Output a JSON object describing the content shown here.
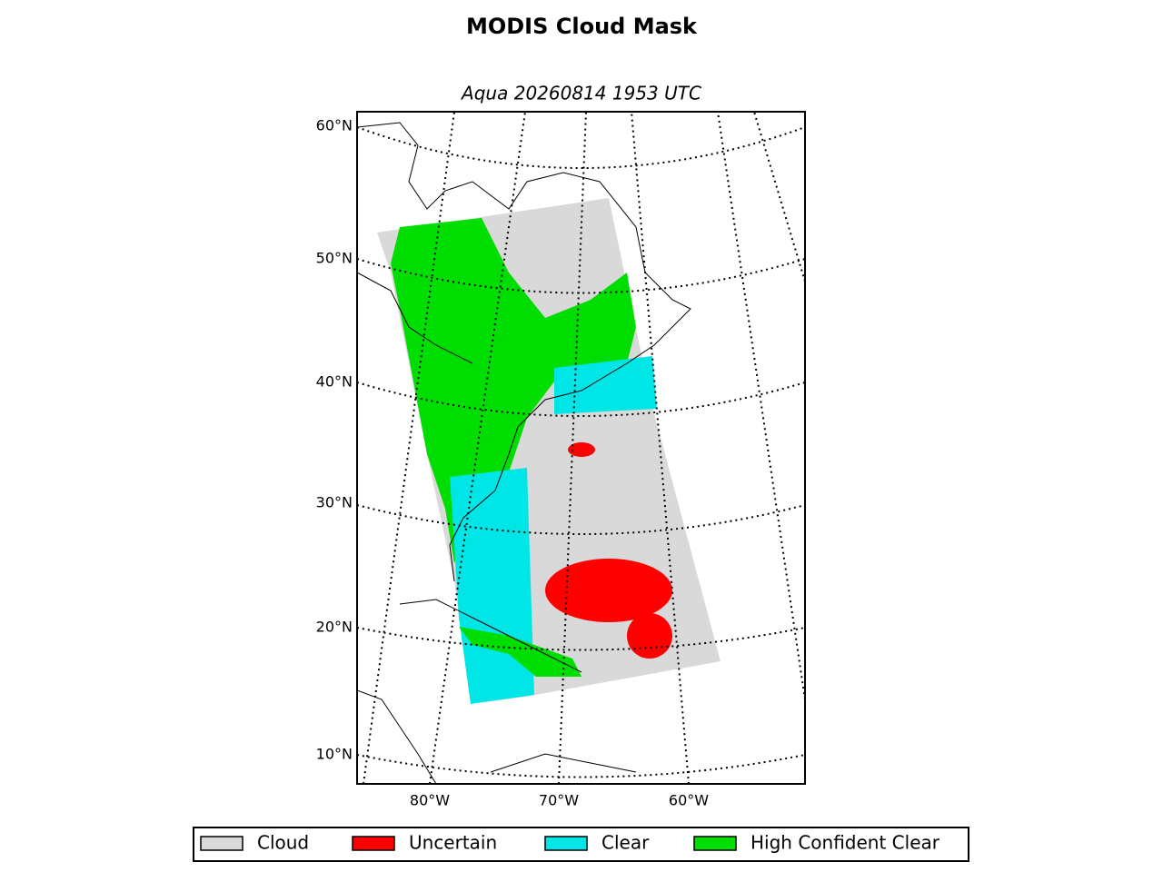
{
  "title": "MODIS Cloud Mask",
  "subtitle": "Aqua 20260814 1953 UTC",
  "lat_labels": [
    "60°N",
    "50°N",
    "40°N",
    "30°N",
    "20°N",
    "10°N"
  ],
  "lon_labels": [
    "80°W",
    "70°W",
    "60°W"
  ],
  "legend": [
    {
      "label": "Cloud",
      "color": "#d9d9d9"
    },
    {
      "label": "Uncertain",
      "color": "#ff0000"
    },
    {
      "label": "Clear",
      "color": "#00e5e5"
    },
    {
      "label": "High Confident Clear",
      "color": "#00dd00"
    }
  ]
}
